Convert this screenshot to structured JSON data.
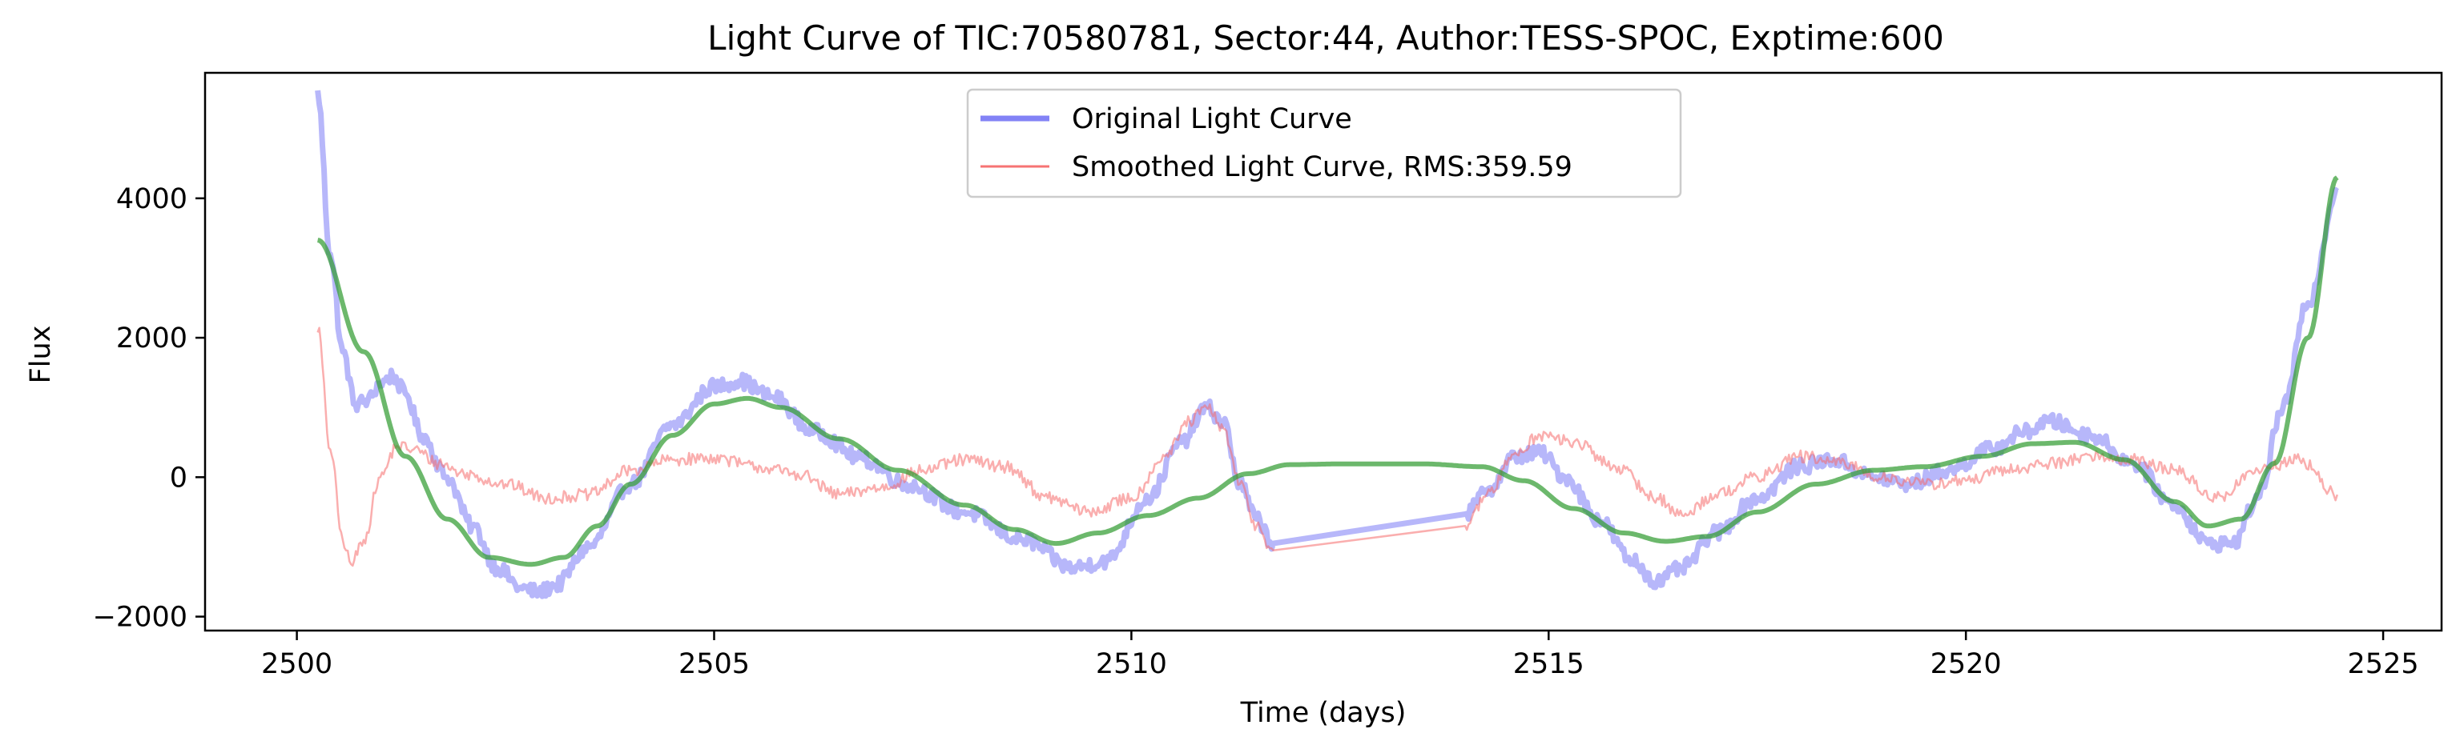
{
  "chart_data": {
    "type": "line",
    "title": "Light Curve of TIC:70580781, Sector:44, Author:TESS-SPOC, Exptime:600",
    "xlabel": "Time (days)",
    "ylabel": "Flux",
    "xlim": [
      2498.9,
      2525.7
    ],
    "ylim": [
      -2200,
      5800
    ],
    "xticks": [
      2500,
      2505,
      2510,
      2515,
      2520,
      2525
    ],
    "yticks": [
      -2000,
      0,
      2000,
      4000
    ],
    "grid": false,
    "legend_position": "top-center",
    "series": [
      {
        "name": "Original Light Curve",
        "color": "#7b7bf5",
        "noise": 110,
        "points": [
          [
            2500.25,
            5500
          ],
          [
            2500.4,
            3200
          ],
          [
            2500.55,
            1800
          ],
          [
            2500.7,
            1050
          ],
          [
            2500.85,
            1100
          ],
          [
            2501.0,
            1350
          ],
          [
            2501.15,
            1450
          ],
          [
            2501.3,
            1200
          ],
          [
            2501.5,
            600
          ],
          [
            2501.8,
            0
          ],
          [
            2502.1,
            -700
          ],
          [
            2502.4,
            -1300
          ],
          [
            2502.7,
            -1600
          ],
          [
            2502.9,
            -1650
          ],
          [
            2503.1,
            -1550
          ],
          [
            2503.5,
            -1000
          ],
          [
            2504.0,
            -100
          ],
          [
            2504.5,
            750
          ],
          [
            2505.0,
            1300
          ],
          [
            2505.3,
            1380
          ],
          [
            2505.7,
            1150
          ],
          [
            2506.2,
            650
          ],
          [
            2506.8,
            250
          ],
          [
            2507.3,
            -100
          ],
          [
            2508.0,
            -500
          ],
          [
            2508.7,
            -900
          ],
          [
            2509.3,
            -1300
          ],
          [
            2509.7,
            -1200
          ],
          [
            2510.2,
            -300
          ],
          [
            2510.6,
            500
          ],
          [
            2510.9,
            1000
          ],
          [
            2511.1,
            800
          ],
          [
            2511.3,
            -100
          ],
          [
            2511.5,
            -600
          ],
          [
            2511.7,
            -950
          ],
          [
            2514.0,
            -530
          ],
          [
            2514.3,
            -150
          ],
          [
            2514.6,
            300
          ],
          [
            2514.9,
            350
          ],
          [
            2515.2,
            0
          ],
          [
            2515.6,
            -600
          ],
          [
            2516.0,
            -1200
          ],
          [
            2516.3,
            -1500
          ],
          [
            2516.6,
            -1300
          ],
          [
            2517.0,
            -800
          ],
          [
            2517.5,
            -300
          ],
          [
            2518.0,
            150
          ],
          [
            2518.4,
            250
          ],
          [
            2518.9,
            0
          ],
          [
            2519.3,
            -100
          ],
          [
            2519.8,
            100
          ],
          [
            2520.3,
            400
          ],
          [
            2520.7,
            650
          ],
          [
            2521.0,
            800
          ],
          [
            2521.5,
            600
          ],
          [
            2522.0,
            200
          ],
          [
            2522.5,
            -400
          ],
          [
            2522.9,
            -950
          ],
          [
            2523.2,
            -950
          ],
          [
            2523.5,
            -300
          ],
          [
            2523.8,
            1000
          ],
          [
            2524.1,
            2500
          ],
          [
            2524.45,
            4100
          ]
        ]
      },
      {
        "name": "Smoothed Light Curve, RMS:359.59",
        "color": "#f56b6b",
        "noise": 90,
        "points": [
          [
            2500.25,
            2150
          ],
          [
            2500.4,
            400
          ],
          [
            2500.55,
            -900
          ],
          [
            2500.65,
            -1250
          ],
          [
            2500.8,
            -900
          ],
          [
            2501.0,
            0
          ],
          [
            2501.2,
            450
          ],
          [
            2501.4,
            400
          ],
          [
            2501.7,
            200
          ],
          [
            2502.0,
            50
          ],
          [
            2502.5,
            -100
          ],
          [
            2503.0,
            -300
          ],
          [
            2503.5,
            -250
          ],
          [
            2504.0,
            100
          ],
          [
            2504.5,
            250
          ],
          [
            2505.0,
            280
          ],
          [
            2505.5,
            150
          ],
          [
            2506.0,
            50
          ],
          [
            2506.5,
            -250
          ],
          [
            2507.0,
            -150
          ],
          [
            2507.5,
            100
          ],
          [
            2508.0,
            250
          ],
          [
            2508.5,
            150
          ],
          [
            2509.0,
            -300
          ],
          [
            2509.5,
            -500
          ],
          [
            2510.0,
            -300
          ],
          [
            2510.4,
            300
          ],
          [
            2510.7,
            800
          ],
          [
            2510.9,
            1000
          ],
          [
            2511.1,
            700
          ],
          [
            2511.3,
            -100
          ],
          [
            2511.5,
            -700
          ],
          [
            2511.7,
            -1050
          ],
          [
            2514.0,
            -700
          ],
          [
            2514.3,
            -200
          ],
          [
            2514.6,
            350
          ],
          [
            2514.9,
            600
          ],
          [
            2515.3,
            500
          ],
          [
            2515.8,
            150
          ],
          [
            2516.3,
            -300
          ],
          [
            2516.6,
            -550
          ],
          [
            2517.0,
            -250
          ],
          [
            2517.5,
            0
          ],
          [
            2518.0,
            300
          ],
          [
            2518.5,
            200
          ],
          [
            2519.0,
            0
          ],
          [
            2519.5,
            -100
          ],
          [
            2520.0,
            -50
          ],
          [
            2520.5,
            100
          ],
          [
            2521.0,
            200
          ],
          [
            2521.5,
            300
          ],
          [
            2522.0,
            250
          ],
          [
            2522.5,
            100
          ],
          [
            2523.0,
            -300
          ],
          [
            2523.5,
            100
          ],
          [
            2524.0,
            250
          ],
          [
            2524.45,
            -250
          ]
        ]
      },
      {
        "name": "",
        "color": "#2e9a2e",
        "noise": 0,
        "points": [
          [
            2500.25,
            3400
          ],
          [
            2500.8,
            1800
          ],
          [
            2501.3,
            300
          ],
          [
            2501.8,
            -600
          ],
          [
            2502.3,
            -1150
          ],
          [
            2502.8,
            -1250
          ],
          [
            2503.2,
            -1150
          ],
          [
            2503.6,
            -700
          ],
          [
            2504.0,
            -100
          ],
          [
            2504.5,
            600
          ],
          [
            2505.0,
            1050
          ],
          [
            2505.4,
            1130
          ],
          [
            2505.8,
            1000
          ],
          [
            2506.5,
            550
          ],
          [
            2507.2,
            100
          ],
          [
            2508.0,
            -400
          ],
          [
            2508.6,
            -750
          ],
          [
            2509.1,
            -950
          ],
          [
            2509.6,
            -800
          ],
          [
            2510.2,
            -550
          ],
          [
            2510.8,
            -300
          ],
          [
            2511.4,
            50
          ],
          [
            2511.9,
            180
          ],
          [
            2512.5,
            190
          ],
          [
            2513.5,
            190
          ],
          [
            2514.2,
            150
          ],
          [
            2514.7,
            -50
          ],
          [
            2515.3,
            -450
          ],
          [
            2515.9,
            -800
          ],
          [
            2516.4,
            -920
          ],
          [
            2516.9,
            -850
          ],
          [
            2517.5,
            -500
          ],
          [
            2518.2,
            -100
          ],
          [
            2518.9,
            100
          ],
          [
            2519.5,
            150
          ],
          [
            2520.2,
            300
          ],
          [
            2520.8,
            480
          ],
          [
            2521.3,
            500
          ],
          [
            2521.9,
            250
          ],
          [
            2522.5,
            -350
          ],
          [
            2522.9,
            -700
          ],
          [
            2523.3,
            -600
          ],
          [
            2523.7,
            200
          ],
          [
            2524.1,
            2000
          ],
          [
            2524.45,
            4300
          ]
        ]
      }
    ]
  }
}
